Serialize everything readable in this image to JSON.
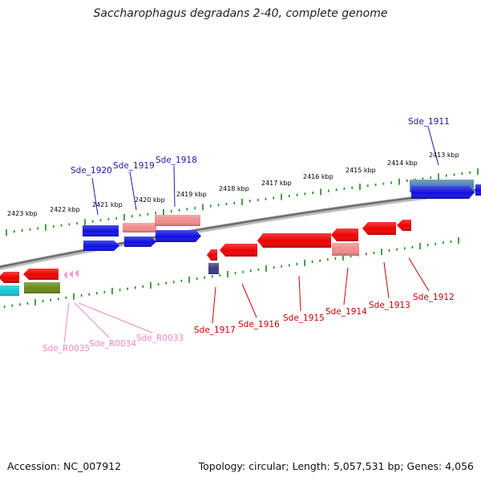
{
  "title": "Saccharophagus degradans 2-40, complete genome",
  "footer": {
    "accession": "Accession: NC_007912",
    "topology": "Topology: circular; Length: 5,057,531 bp; Genes: 4,056"
  },
  "kbp_labels": [
    "2423 kbp",
    "2422 kbp",
    "2421 kbp",
    "2420 kbp",
    "2419 kbp",
    "2418 kbp",
    "2417 kbp",
    "2416 kbp",
    "2415 kbp",
    "2414 kbp",
    "2413 kbp"
  ],
  "gene_labels": {
    "forward": [
      "Sde_1920",
      "Sde_1919",
      "Sde_1918",
      "Sde_1911"
    ],
    "reverse": [
      "Sde_1917",
      "Sde_1916",
      "Sde_1915",
      "Sde_1914",
      "Sde_1913",
      "Sde_1912"
    ],
    "rna": [
      "Sde_R0035",
      "Sde_R0034",
      "Sde_R0033"
    ]
  },
  "colors": {
    "forward_label": "#1a1aaa",
    "reverse_label": "#cc0000",
    "rna_label": "#ee88bb",
    "forward_gene": "#1010e0",
    "reverse_gene": "#ee0000",
    "pseudo_gene": "#f08a8a",
    "steel_gene": "#4a7fb0",
    "cyan_gene": "#10c8d8",
    "olive_gene": "#6a8a1a",
    "purple_gene": "#403880",
    "rna_gene": "#f4a0c8",
    "tick": "#1a8a1a",
    "backbone": "#808080"
  }
}
